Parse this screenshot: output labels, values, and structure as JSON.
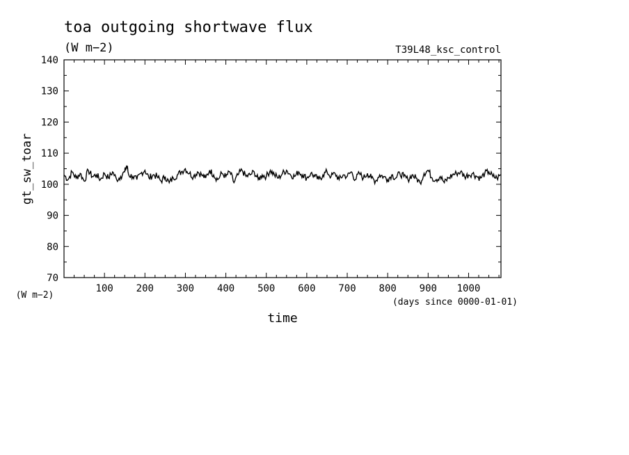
{
  "chart_data": {
    "type": "line",
    "title": "toa outgoing shortwave flux",
    "subtitle": "(W m−2)",
    "run_label": "T39L48_ksc_control",
    "ylabel": "gt_sw_toar",
    "yunit": "(W m−2)",
    "xlabel": "time",
    "xunit": "(days since 0000-01-01)",
    "xlim": [
      0,
      1080
    ],
    "ylim": [
      70,
      140
    ],
    "xticks": [
      100,
      200,
      300,
      400,
      500,
      600,
      700,
      800,
      900,
      1000
    ],
    "xtick_labels": [
      "100",
      "200",
      "300",
      "400",
      "500",
      "600",
      "700",
      "800",
      "900",
      "1000"
    ],
    "yticks": [
      70,
      80,
      90,
      100,
      110,
      120,
      130,
      140
    ],
    "ytick_labels": [
      "70",
      "80",
      "90",
      "100",
      "110",
      "120",
      "130",
      "140"
    ],
    "grid": false,
    "line_color": "#000000",
    "series": [
      {
        "x": [
          0,
          10,
          20,
          30,
          40,
          50,
          60,
          70,
          80,
          90,
          100,
          110,
          120,
          130,
          140,
          150,
          155,
          160,
          170,
          180,
          190,
          200,
          210,
          220,
          230,
          240,
          250,
          260,
          270,
          280,
          290,
          300,
          310,
          320,
          330,
          340,
          350,
          360,
          370,
          380,
          390,
          400,
          410,
          420,
          430,
          440,
          450,
          460,
          470,
          480,
          490,
          500,
          510,
          520,
          530,
          540,
          550,
          560,
          570,
          580,
          590,
          600,
          610,
          620,
          630,
          640,
          650,
          660,
          670,
          680,
          690,
          700,
          710,
          720,
          730,
          740,
          750,
          760,
          770,
          780,
          790,
          800,
          810,
          820,
          830,
          840,
          850,
          860,
          870,
          880,
          890,
          900,
          910,
          920,
          930,
          940,
          950,
          960,
          970,
          980,
          990,
          1000,
          1010,
          1020,
          1030,
          1040,
          1050,
          1060,
          1070,
          1080
        ],
        "values": [
          103.0,
          101.5,
          104.0,
          102.0,
          103.5,
          101.0,
          104.5,
          102.5,
          103.0,
          101.5,
          103.5,
          102.0,
          104.0,
          101.5,
          102.5,
          104.0,
          106.0,
          103.0,
          102.5,
          101.5,
          103.5,
          104.5,
          102.0,
          103.0,
          102.5,
          101.0,
          102.5,
          100.5,
          102.0,
          103.0,
          104.0,
          105.0,
          103.5,
          102.5,
          104.0,
          103.0,
          102.0,
          104.5,
          103.0,
          101.5,
          103.5,
          102.5,
          104.0,
          100.5,
          103.0,
          104.5,
          102.5,
          103.0,
          104.0,
          101.5,
          103.0,
          102.5,
          104.5,
          103.0,
          102.0,
          103.5,
          104.5,
          103.0,
          102.5,
          104.0,
          103.0,
          102.0,
          103.5,
          102.5,
          101.5,
          103.0,
          104.0,
          102.5,
          103.5,
          101.5,
          103.0,
          102.5,
          104.0,
          101.5,
          103.5,
          102.0,
          103.5,
          102.0,
          101.0,
          103.0,
          102.5,
          101.5,
          103.0,
          102.0,
          103.5,
          102.5,
          101.5,
          103.0,
          102.0,
          100.5,
          103.5,
          104.5,
          102.0,
          101.5,
          102.5,
          100.5,
          102.0,
          103.0,
          103.5,
          104.0,
          102.5,
          103.0,
          103.5,
          102.5,
          102.0,
          103.5,
          104.0,
          102.5,
          102.0,
          103.0
        ]
      }
    ]
  }
}
